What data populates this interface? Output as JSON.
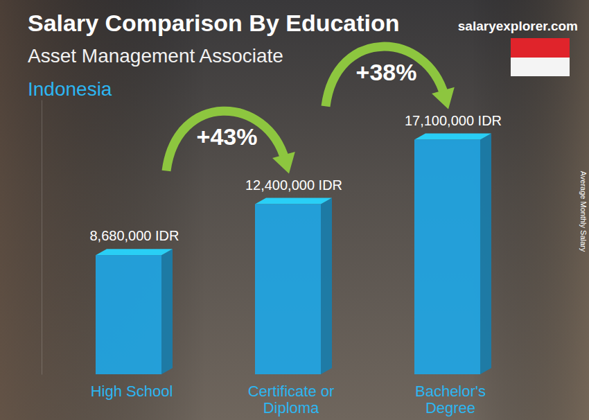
{
  "chart_data": {
    "type": "bar",
    "title": "Salary Comparison By Education",
    "subtitle": "Asset Management Associate",
    "location": "Indonesia",
    "source": "salaryexplorer.com",
    "ylabel": "Average Monthly Salary",
    "categories": [
      "High School",
      "Certificate or Diploma",
      "Bachelor's Degree"
    ],
    "values": [
      8680000,
      12400000,
      17100000
    ],
    "value_labels": [
      "8,680,000 IDR",
      "12,400,000 IDR",
      "17,100,000 IDR"
    ],
    "annotations": [
      "+43%",
      "+38%"
    ],
    "color": "#1ea7e8",
    "ylim": [
      0,
      20000000
    ],
    "data_labels": true,
    "tick_labels": "x",
    "grid": false
  }
}
